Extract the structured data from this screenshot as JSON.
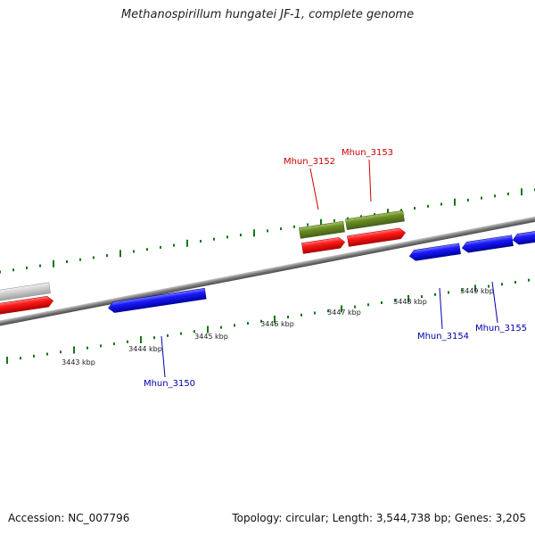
{
  "title": "Methanospirillum hungatei JF-1, complete genome",
  "footer": {
    "accession_label": "Accession:",
    "accession": "NC_007796",
    "topology_label": "Topology:",
    "topology": "circular",
    "length_label": "Length:",
    "length": "3,544,738 bp",
    "genes_label": "Genes:",
    "genes": "3,205"
  },
  "colors": {
    "backbone": "#7a7a7a",
    "forward_cds": "#e01010",
    "reverse_cds": "#1414e0",
    "rna_gene": "#6b8e23",
    "other_gene": "#c8c8c8",
    "tick": "#117711",
    "label_forward": "#cc0000",
    "label_reverse": "#0000aa",
    "scale_text": "#222222"
  },
  "scale": {
    "unit": "kbp",
    "labeled_positions": [
      3443,
      3444,
      3445,
      3446,
      3447,
      3448,
      3449
    ],
    "labels": [
      "3443 kbp",
      "3444 kbp",
      "3445 kbp",
      "3446 kbp",
      "3447 kbp",
      "3448 kbp",
      "3449 kbp"
    ]
  },
  "features": [
    {
      "kind": "other_gene",
      "strand": "forward",
      "label": ""
    },
    {
      "kind": "cds",
      "strand": "forward",
      "label": ""
    },
    {
      "kind": "rna_gene",
      "strand": "forward",
      "label": "Mhun_3152"
    },
    {
      "kind": "rna_gene",
      "strand": "forward",
      "label": "Mhun_3153"
    },
    {
      "kind": "cds",
      "strand": "forward",
      "label": ""
    },
    {
      "kind": "cds",
      "strand": "forward",
      "label": ""
    },
    {
      "kind": "cds",
      "strand": "reverse",
      "label": "Mhun_3150"
    },
    {
      "kind": "cds",
      "strand": "reverse",
      "label": "Mhun_3154"
    },
    {
      "kind": "cds",
      "strand": "reverse",
      "label": "Mhun_3155"
    },
    {
      "kind": "cds",
      "strand": "reverse",
      "label": ""
    }
  ],
  "gene_labels": [
    {
      "text": "Mhun_3152",
      "strand": "forward"
    },
    {
      "text": "Mhun_3153",
      "strand": "forward"
    },
    {
      "text": "Mhun_3150",
      "strand": "reverse"
    },
    {
      "text": "Mhun_3154",
      "strand": "reverse"
    },
    {
      "text": "Mhun_3155",
      "strand": "reverse"
    }
  ]
}
